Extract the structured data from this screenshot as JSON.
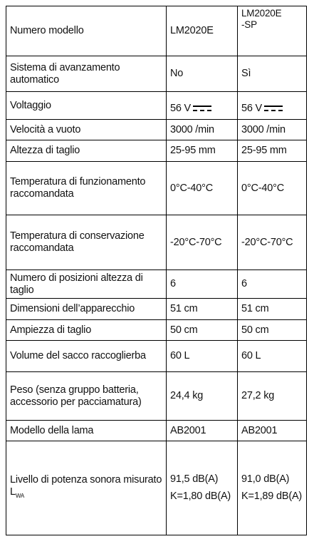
{
  "table": {
    "header": [
      "Numero modello",
      "LM2020E",
      "LM2020E-SP"
    ],
    "rows": [
      [
        "Sistema di avanzamento automatico",
        "No",
        "Sì"
      ],
      [
        "Voltaggio",
        "56 V",
        "56 V"
      ],
      [
        "Velocità a vuoto",
        "3000 /min",
        "3000 /min"
      ],
      [
        "Altezza di taglio",
        "25-95 mm",
        "25-95 mm"
      ],
      [
        "Temperatura di funzionamento raccomandata",
        "0°C-40°C",
        "0°C-40°C"
      ],
      [
        "Temperatura di conservazione raccomandata",
        "-20°C-70°C",
        "-20°C-70°C"
      ],
      [
        "Numero di posizioni altezza di taglio",
        "6",
        "6"
      ],
      [
        "Dimensioni dell’apparecchio",
        "51 cm",
        "51 cm"
      ],
      [
        "Ampiezza di taglio",
        "50 cm",
        "50 cm"
      ],
      [
        "Volume del sacco raccoglierba",
        "60 L",
        "60 L"
      ],
      [
        "Peso (senza gruppo batteria, accessorio per pacciamatura)",
        "24,4 kg",
        "27,2 kg"
      ],
      [
        "Modello della lama",
        "AB2001",
        "AB2001"
      ]
    ],
    "sound": {
      "label": "Livello di potenza sonora misurato L",
      "label_sub": "WA",
      "values": [
        [
          "91,5 dB(A)",
          "K=1,80 dB(A)"
        ],
        [
          "91,0 dB(A)",
          "K=1,89 dB(A)"
        ]
      ]
    }
  }
}
